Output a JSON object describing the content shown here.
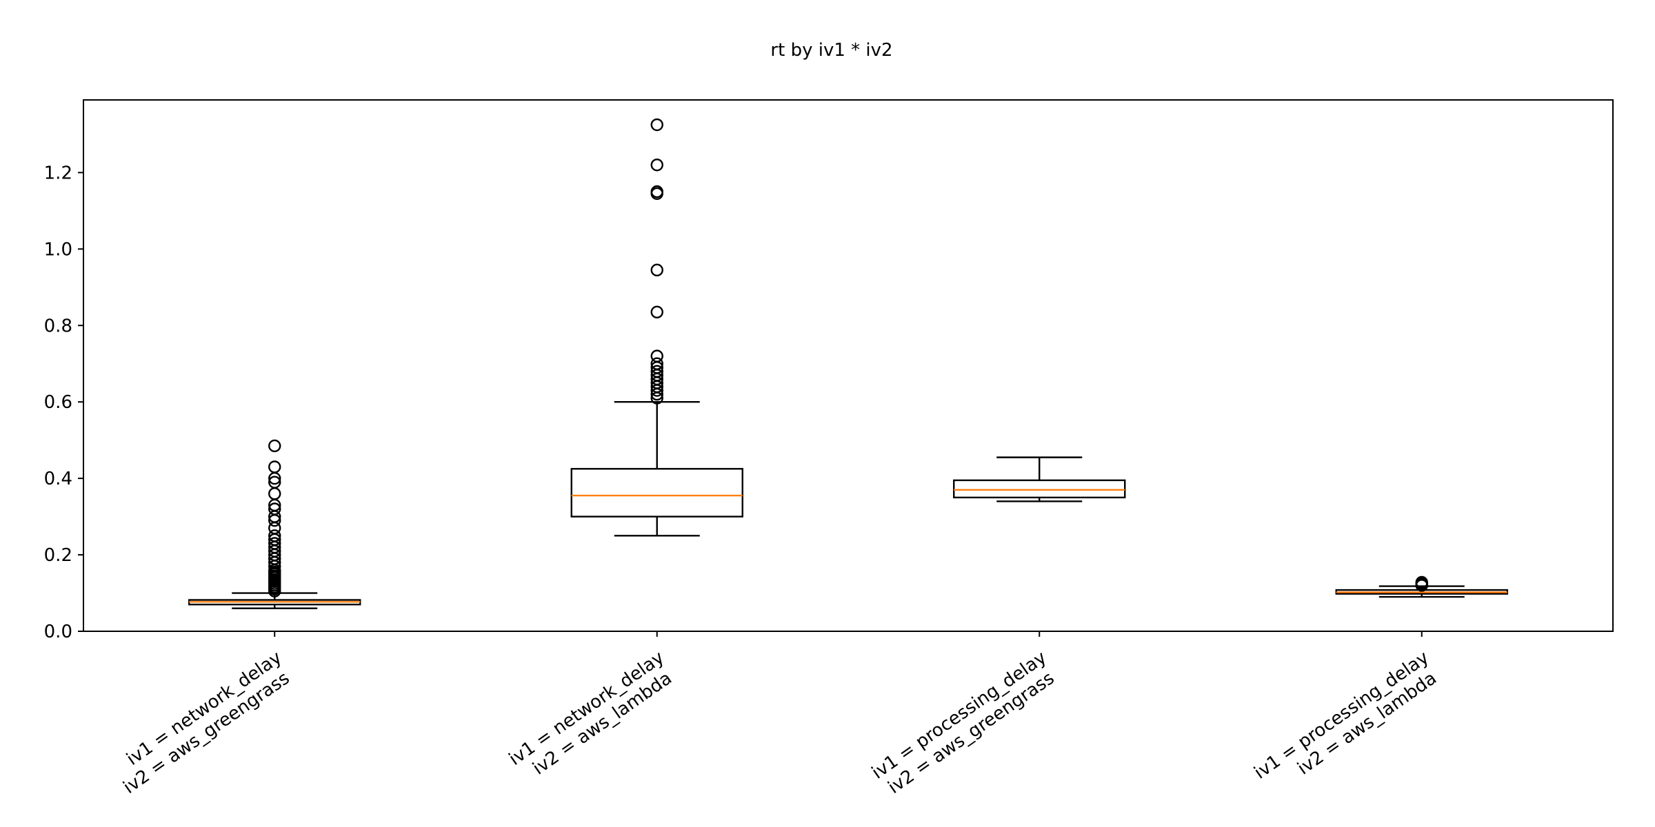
{
  "chart_data": {
    "type": "box",
    "title": "rt by iv1 * iv2",
    "xlabel": "",
    "ylabel": "",
    "ylim": [
      0.0,
      1.39
    ],
    "yticks": [
      0.0,
      0.2,
      0.4,
      0.6,
      0.8,
      1.0,
      1.2
    ],
    "ytick_labels": [
      "0.0",
      "0.2",
      "0.4",
      "0.6",
      "0.8",
      "1.0",
      "1.2"
    ],
    "grid": false,
    "colors": {
      "box": "#000000",
      "median": "#ff7f0e",
      "outlier_edge": "#000000"
    },
    "categories": [
      {
        "label_lines": [
          "iv1 = network_delay",
          "iv2 = aws_greengrass"
        ]
      },
      {
        "label_lines": [
          "iv1 = network_delay",
          "iv2 = aws_lambda"
        ]
      },
      {
        "label_lines": [
          "iv1 = processing_delay",
          "iv2 = aws_greengrass"
        ]
      },
      {
        "label_lines": [
          "iv1 = processing_delay",
          "iv2 = aws_lambda"
        ]
      }
    ],
    "boxes": [
      {
        "whisker_low": 0.06,
        "q1": 0.07,
        "median": 0.077,
        "q3": 0.082,
        "whisker_high": 0.1,
        "outliers": [
          0.105,
          0.11,
          0.115,
          0.12,
          0.125,
          0.13,
          0.135,
          0.14,
          0.145,
          0.15,
          0.155,
          0.16,
          0.17,
          0.18,
          0.19,
          0.2,
          0.21,
          0.22,
          0.23,
          0.24,
          0.25,
          0.27,
          0.29,
          0.3,
          0.32,
          0.33,
          0.36,
          0.39,
          0.4,
          0.43,
          0.485
        ]
      },
      {
        "whisker_low": 0.25,
        "q1": 0.3,
        "median": 0.355,
        "q3": 0.425,
        "whisker_high": 0.6,
        "outliers": [
          0.61,
          0.62,
          0.63,
          0.64,
          0.65,
          0.66,
          0.67,
          0.68,
          0.69,
          0.7,
          0.72,
          0.835,
          0.945,
          1.145,
          1.15,
          1.22,
          1.325
        ]
      },
      {
        "whisker_low": 0.34,
        "q1": 0.35,
        "median": 0.37,
        "q3": 0.395,
        "whisker_high": 0.455,
        "outliers": []
      },
      {
        "whisker_low": 0.09,
        "q1": 0.098,
        "median": 0.102,
        "q3": 0.108,
        "whisker_high": 0.118,
        "outliers": [
          0.12,
          0.122,
          0.125,
          0.128
        ]
      }
    ]
  }
}
